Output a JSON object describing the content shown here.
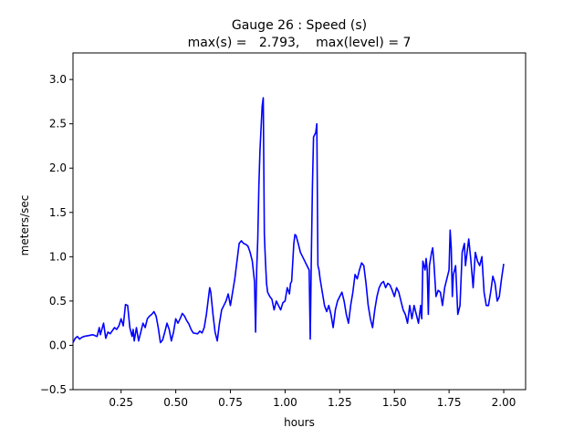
{
  "chart_data": {
    "type": "line",
    "title_line1": "Gauge 26 : Speed (s)",
    "title_line2": "max(s) =   2.793,    max(level) = 7",
    "xlabel": "hours",
    "ylabel": "meters/sec",
    "xlim": [
      0.03,
      2.1
    ],
    "ylim": [
      -0.5,
      3.3
    ],
    "xticks": [
      0.25,
      0.5,
      0.75,
      1.0,
      1.25,
      1.5,
      1.75,
      2.0
    ],
    "xtick_labels": [
      "0.25",
      "0.50",
      "0.75",
      "1.00",
      "1.25",
      "1.50",
      "1.75",
      "2.00"
    ],
    "yticks": [
      -0.5,
      0.0,
      0.5,
      1.0,
      1.5,
      2.0,
      2.5,
      3.0
    ],
    "ytick_labels": [
      "−0.5",
      "0.0",
      "0.5",
      "1.0",
      "1.5",
      "2.0",
      "2.5",
      "3.0"
    ],
    "grid": false,
    "line_color": "#0000ff",
    "series": [
      {
        "points": [
          [
            0.03,
            0.03
          ],
          [
            0.04,
            0.08
          ],
          [
            0.05,
            0.1
          ],
          [
            0.06,
            0.07
          ],
          [
            0.07,
            0.09
          ],
          [
            0.08,
            0.1
          ],
          [
            0.1,
            0.11
          ],
          [
            0.12,
            0.12
          ],
          [
            0.14,
            0.1
          ],
          [
            0.15,
            0.2
          ],
          [
            0.155,
            0.12
          ],
          [
            0.17,
            0.25
          ],
          [
            0.18,
            0.08
          ],
          [
            0.19,
            0.15
          ],
          [
            0.2,
            0.13
          ],
          [
            0.22,
            0.2
          ],
          [
            0.23,
            0.18
          ],
          [
            0.24,
            0.22
          ],
          [
            0.25,
            0.3
          ],
          [
            0.26,
            0.22
          ],
          [
            0.27,
            0.46
          ],
          [
            0.28,
            0.45
          ],
          [
            0.29,
            0.2
          ],
          [
            0.3,
            0.1
          ],
          [
            0.305,
            0.18
          ],
          [
            0.31,
            0.05
          ],
          [
            0.32,
            0.2
          ],
          [
            0.33,
            0.05
          ],
          [
            0.34,
            0.15
          ],
          [
            0.35,
            0.25
          ],
          [
            0.36,
            0.2
          ],
          [
            0.37,
            0.3
          ],
          [
            0.38,
            0.33
          ],
          [
            0.39,
            0.35
          ],
          [
            0.4,
            0.38
          ],
          [
            0.41,
            0.33
          ],
          [
            0.42,
            0.2
          ],
          [
            0.43,
            0.03
          ],
          [
            0.44,
            0.06
          ],
          [
            0.45,
            0.15
          ],
          [
            0.46,
            0.25
          ],
          [
            0.47,
            0.18
          ],
          [
            0.48,
            0.05
          ],
          [
            0.49,
            0.15
          ],
          [
            0.5,
            0.3
          ],
          [
            0.51,
            0.25
          ],
          [
            0.52,
            0.3
          ],
          [
            0.53,
            0.36
          ],
          [
            0.54,
            0.33
          ],
          [
            0.55,
            0.28
          ],
          [
            0.56,
            0.24
          ],
          [
            0.57,
            0.18
          ],
          [
            0.58,
            0.14
          ],
          [
            0.6,
            0.13
          ],
          [
            0.61,
            0.16
          ],
          [
            0.62,
            0.14
          ],
          [
            0.63,
            0.2
          ],
          [
            0.64,
            0.35
          ],
          [
            0.65,
            0.55
          ],
          [
            0.655,
            0.65
          ],
          [
            0.66,
            0.6
          ],
          [
            0.67,
            0.35
          ],
          [
            0.68,
            0.15
          ],
          [
            0.69,
            0.05
          ],
          [
            0.7,
            0.25
          ],
          [
            0.71,
            0.4
          ],
          [
            0.72,
            0.45
          ],
          [
            0.73,
            0.5
          ],
          [
            0.74,
            0.58
          ],
          [
            0.75,
            0.45
          ],
          [
            0.76,
            0.6
          ],
          [
            0.77,
            0.75
          ],
          [
            0.78,
            0.95
          ],
          [
            0.79,
            1.15
          ],
          [
            0.8,
            1.18
          ],
          [
            0.81,
            1.15
          ],
          [
            0.82,
            1.14
          ],
          [
            0.83,
            1.12
          ],
          [
            0.84,
            1.05
          ],
          [
            0.85,
            0.95
          ],
          [
            0.86,
            0.72
          ],
          [
            0.865,
            0.15
          ],
          [
            0.87,
            0.85
          ],
          [
            0.875,
            1.2
          ],
          [
            0.88,
            1.8
          ],
          [
            0.885,
            2.2
          ],
          [
            0.89,
            2.45
          ],
          [
            0.895,
            2.7
          ],
          [
            0.9,
            2.793
          ],
          [
            0.905,
            1.25
          ],
          [
            0.91,
            0.95
          ],
          [
            0.915,
            0.7
          ],
          [
            0.92,
            0.6
          ],
          [
            0.93,
            0.55
          ],
          [
            0.94,
            0.52
          ],
          [
            0.95,
            0.4
          ],
          [
            0.96,
            0.5
          ],
          [
            0.97,
            0.45
          ],
          [
            0.98,
            0.4
          ],
          [
            0.99,
            0.48
          ],
          [
            1.0,
            0.5
          ],
          [
            1.01,
            0.65
          ],
          [
            1.02,
            0.58
          ],
          [
            1.025,
            0.7
          ],
          [
            1.03,
            0.72
          ],
          [
            1.04,
            1.15
          ],
          [
            1.045,
            1.25
          ],
          [
            1.05,
            1.24
          ],
          [
            1.06,
            1.15
          ],
          [
            1.07,
            1.05
          ],
          [
            1.08,
            1.0
          ],
          [
            1.09,
            0.95
          ],
          [
            1.1,
            0.9
          ],
          [
            1.11,
            0.85
          ],
          [
            1.115,
            0.07
          ],
          [
            1.12,
            1.0
          ],
          [
            1.125,
            1.8
          ],
          [
            1.13,
            2.35
          ],
          [
            1.14,
            2.4
          ],
          [
            1.145,
            2.5
          ],
          [
            1.15,
            0.9
          ],
          [
            1.155,
            0.85
          ],
          [
            1.16,
            0.75
          ],
          [
            1.17,
            0.6
          ],
          [
            1.18,
            0.45
          ],
          [
            1.19,
            0.38
          ],
          [
            1.2,
            0.45
          ],
          [
            1.21,
            0.35
          ],
          [
            1.22,
            0.2
          ],
          [
            1.23,
            0.4
          ],
          [
            1.24,
            0.5
          ],
          [
            1.25,
            0.55
          ],
          [
            1.26,
            0.6
          ],
          [
            1.27,
            0.5
          ],
          [
            1.28,
            0.35
          ],
          [
            1.29,
            0.25
          ],
          [
            1.3,
            0.45
          ],
          [
            1.31,
            0.6
          ],
          [
            1.32,
            0.8
          ],
          [
            1.33,
            0.75
          ],
          [
            1.34,
            0.85
          ],
          [
            1.35,
            0.93
          ],
          [
            1.36,
            0.9
          ],
          [
            1.37,
            0.7
          ],
          [
            1.38,
            0.45
          ],
          [
            1.39,
            0.3
          ],
          [
            1.4,
            0.2
          ],
          [
            1.41,
            0.4
          ],
          [
            1.42,
            0.55
          ],
          [
            1.43,
            0.65
          ],
          [
            1.44,
            0.7
          ],
          [
            1.45,
            0.72
          ],
          [
            1.46,
            0.65
          ],
          [
            1.47,
            0.7
          ],
          [
            1.48,
            0.68
          ],
          [
            1.49,
            0.62
          ],
          [
            1.5,
            0.55
          ],
          [
            1.51,
            0.65
          ],
          [
            1.52,
            0.6
          ],
          [
            1.53,
            0.5
          ],
          [
            1.54,
            0.4
          ],
          [
            1.55,
            0.35
          ],
          [
            1.56,
            0.25
          ],
          [
            1.57,
            0.45
          ],
          [
            1.58,
            0.3
          ],
          [
            1.59,
            0.45
          ],
          [
            1.6,
            0.35
          ],
          [
            1.61,
            0.25
          ],
          [
            1.62,
            0.45
          ],
          [
            1.625,
            0.3
          ],
          [
            1.63,
            0.95
          ],
          [
            1.64,
            0.85
          ],
          [
            1.645,
            0.98
          ],
          [
            1.65,
            0.85
          ],
          [
            1.655,
            0.35
          ],
          [
            1.66,
            0.9
          ],
          [
            1.67,
            1.05
          ],
          [
            1.675,
            1.1
          ],
          [
            1.68,
            0.95
          ],
          [
            1.69,
            0.55
          ],
          [
            1.7,
            0.62
          ],
          [
            1.71,
            0.6
          ],
          [
            1.72,
            0.45
          ],
          [
            1.73,
            0.65
          ],
          [
            1.74,
            0.75
          ],
          [
            1.75,
            0.85
          ],
          [
            1.755,
            1.3
          ],
          [
            1.76,
            1.1
          ],
          [
            1.765,
            0.55
          ],
          [
            1.77,
            0.8
          ],
          [
            1.78,
            0.9
          ],
          [
            1.79,
            0.35
          ],
          [
            1.8,
            0.45
          ],
          [
            1.81,
            1.05
          ],
          [
            1.82,
            1.15
          ],
          [
            1.825,
            0.9
          ],
          [
            1.83,
            1.0
          ],
          [
            1.84,
            1.2
          ],
          [
            1.85,
            0.95
          ],
          [
            1.86,
            0.65
          ],
          [
            1.87,
            1.05
          ],
          [
            1.88,
            0.95
          ],
          [
            1.89,
            0.9
          ],
          [
            1.9,
            1.0
          ],
          [
            1.91,
            0.6
          ],
          [
            1.92,
            0.45
          ],
          [
            1.93,
            0.45
          ],
          [
            1.94,
            0.6
          ],
          [
            1.95,
            0.78
          ],
          [
            1.96,
            0.7
          ],
          [
            1.97,
            0.5
          ],
          [
            1.98,
            0.55
          ],
          [
            1.99,
            0.75
          ],
          [
            2.0,
            0.92
          ]
        ]
      }
    ]
  }
}
